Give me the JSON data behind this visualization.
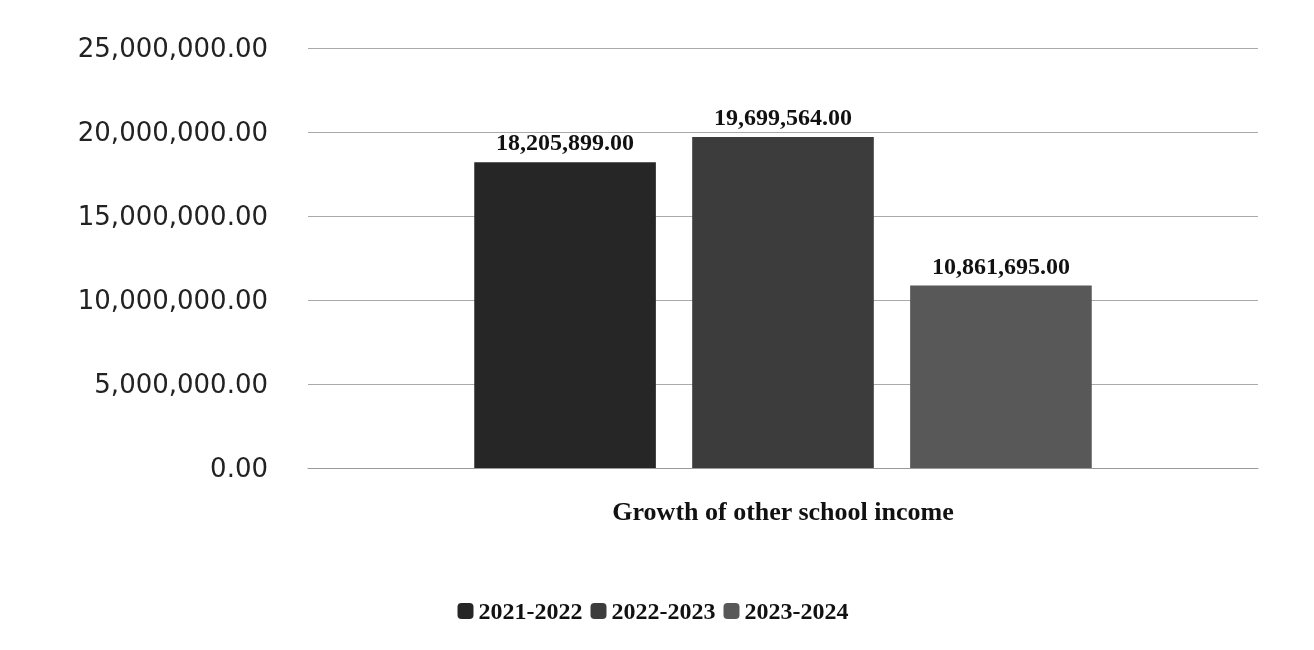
{
  "chart_data": {
    "type": "bar",
    "categories": [
      "Growth of other school income"
    ],
    "series": [
      {
        "name": "2021-2022",
        "color": "#262626",
        "values": [
          18205899
        ],
        "value_labels": [
          "18,205,899.00"
        ]
      },
      {
        "name": "2022-2023",
        "color": "#3c3c3c",
        "values": [
          19699564
        ],
        "value_labels": [
          "19,699,564.00"
        ]
      },
      {
        "name": "2023-2024",
        "color": "#585858",
        "values": [
          10861695
        ],
        "value_labels": [
          "10,861,695.00"
        ]
      }
    ],
    "ylim": [
      0,
      25000000
    ],
    "yticks": [
      {
        "value": 0,
        "label": "0.00"
      },
      {
        "value": 5000000,
        "label": "5,000,000.00"
      },
      {
        "value": 10000000,
        "label": "10,000,000.00"
      },
      {
        "value": 15000000,
        "label": "15,000,000.00"
      },
      {
        "value": 20000000,
        "label": "20,000,000.00"
      },
      {
        "value": 25000000,
        "label": "25,000,000.00"
      }
    ],
    "grid": "y",
    "legend": "bottom"
  }
}
